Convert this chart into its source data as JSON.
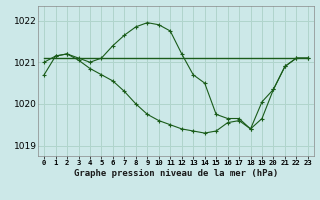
{
  "background_color": "#cce8e8",
  "grid_color": "#b0d4cc",
  "line_color": "#1a5c1a",
  "title": "Graphe pression niveau de la mer (hPa)",
  "xlim": [
    -0.5,
    23.5
  ],
  "ylim": [
    1018.75,
    1022.35
  ],
  "yticks": [
    1019,
    1020,
    1021,
    1022
  ],
  "xtick_labels": [
    "0",
    "1",
    "2",
    "3",
    "4",
    "5",
    "6",
    "7",
    "8",
    "9",
    "10",
    "11",
    "12",
    "13",
    "14",
    "15",
    "16",
    "17",
    "18",
    "19",
    "20",
    "21",
    "22",
    "23"
  ],
  "series1_x": [
    0,
    1,
    2,
    3,
    4,
    5,
    6,
    7,
    8,
    9,
    10,
    11,
    12,
    13,
    14,
    15,
    16,
    17,
    18,
    19,
    20,
    21,
    22,
    23
  ],
  "series1_y": [
    1021.0,
    1021.15,
    1021.2,
    1021.1,
    1021.0,
    1021.1,
    1021.4,
    1021.65,
    1021.85,
    1021.95,
    1021.9,
    1021.75,
    1021.2,
    1020.7,
    1020.5,
    1019.75,
    1019.65,
    1019.65,
    1019.4,
    1020.05,
    1020.35,
    1020.9,
    1021.1,
    1021.1
  ],
  "series2_x": [
    0,
    19,
    23
  ],
  "series2_y": [
    1021.1,
    1021.1,
    1021.1
  ],
  "series3_x": [
    0,
    1,
    2,
    3,
    4,
    5,
    6,
    7,
    8,
    9,
    10,
    11,
    12,
    13,
    14,
    15,
    16,
    17,
    18,
    19,
    20,
    21,
    22,
    23
  ],
  "series3_y": [
    1020.7,
    1021.15,
    1021.2,
    1021.05,
    1020.85,
    1020.7,
    1020.55,
    1020.3,
    1020.0,
    1019.75,
    1019.6,
    1019.5,
    1019.4,
    1019.35,
    1019.3,
    1019.35,
    1019.55,
    1019.6,
    1019.4,
    1019.65,
    1020.35,
    1020.9,
    1021.1,
    1021.1
  ]
}
